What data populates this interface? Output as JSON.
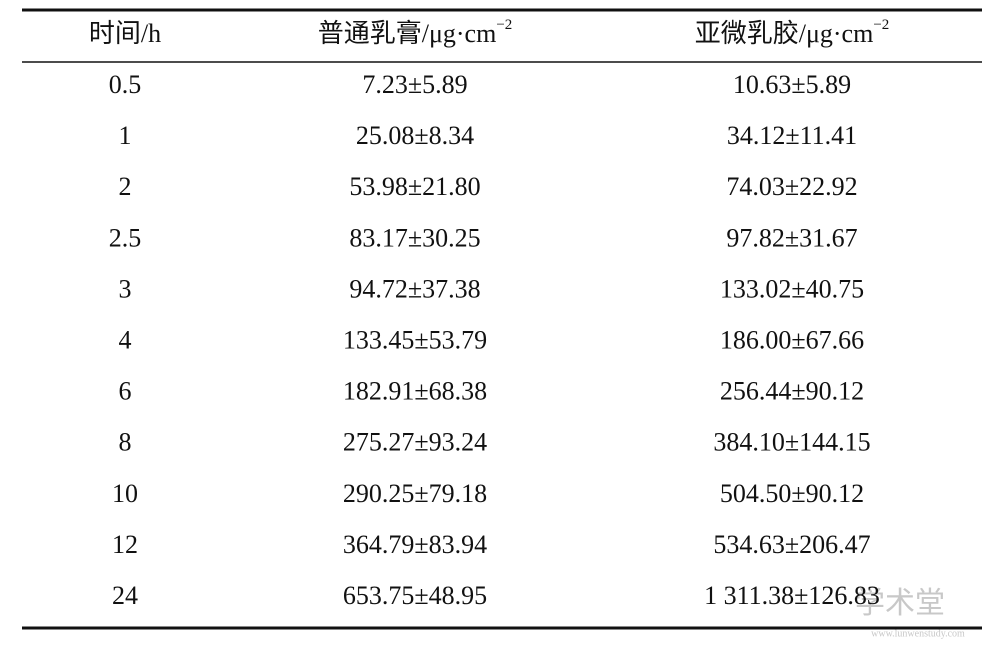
{
  "table": {
    "header": [
      {
        "text": "时间/h"
      },
      {
        "text": "普通乳膏/μg·cm",
        "sup": "−2"
      },
      {
        "text": "亚微乳胶/μg·cm",
        "sup": "−2"
      }
    ],
    "rows": [
      [
        "0.5",
        "7.23±5.89",
        "10.63±5.89"
      ],
      [
        "1",
        "25.08±8.34",
        "34.12±11.41"
      ],
      [
        "2",
        "53.98±21.80",
        "74.03±22.92"
      ],
      [
        "2.5",
        "83.17±30.25",
        "97.82±31.67"
      ],
      [
        "3",
        "94.72±37.38",
        "133.02±40.75"
      ],
      [
        "4",
        "133.45±53.79",
        "186.00±67.66"
      ],
      [
        "6",
        "182.91±68.38",
        "256.44±90.12"
      ],
      [
        "8",
        "275.27±93.24",
        "384.10±144.15"
      ],
      [
        "10",
        "290.25±79.18",
        "504.50±90.12"
      ],
      [
        "12",
        "364.79±83.94",
        "534.63±206.47"
      ],
      [
        "24",
        "653.75±48.95",
        "1 311.38±126.83"
      ]
    ]
  },
  "watermark": {
    "title": "学术堂",
    "url": "www.lunwenstudy.com"
  }
}
